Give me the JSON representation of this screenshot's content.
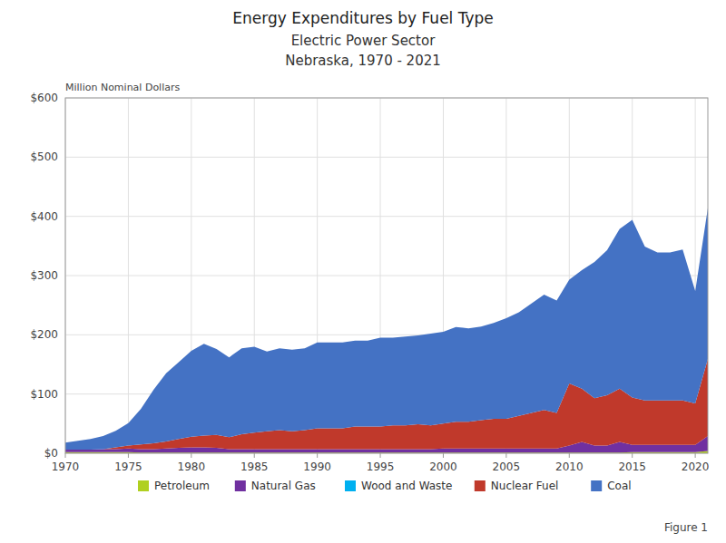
{
  "chart_data": {
    "type": "area",
    "stacked": true,
    "title": "Energy Expenditures by Fuel Type",
    "subtitle": [
      "Electric Power Sector",
      "Nebraska, 1970 - 2021"
    ],
    "ylabel": "Million Nominal Dollars",
    "annotations": [
      "Figure 1"
    ],
    "x": [
      1970,
      1971,
      1972,
      1973,
      1974,
      1975,
      1976,
      1977,
      1978,
      1979,
      1980,
      1981,
      1982,
      1983,
      1984,
      1985,
      1986,
      1987,
      1988,
      1989,
      1990,
      1991,
      1992,
      1993,
      1994,
      1995,
      1996,
      1997,
      1998,
      1999,
      2000,
      2001,
      2002,
      2003,
      2004,
      2005,
      2006,
      2007,
      2008,
      2009,
      2010,
      2011,
      2012,
      2013,
      2014,
      2015,
      2016,
      2017,
      2018,
      2019,
      2020,
      2021
    ],
    "series": [
      {
        "name": "Petroleum",
        "color": "#b0d020",
        "values": [
          2,
          2,
          2,
          2,
          2,
          2,
          1,
          1,
          1,
          1,
          1,
          1,
          1,
          1,
          1,
          1,
          1,
          1,
          1,
          1,
          1,
          1,
          1,
          1,
          1,
          1,
          1,
          1,
          1,
          1,
          1,
          1,
          1,
          1,
          1,
          1,
          1,
          1,
          1,
          1,
          1,
          1,
          1,
          1,
          1,
          2,
          2,
          2,
          2,
          2,
          2,
          4
        ]
      },
      {
        "name": "Natural Gas",
        "color": "#7030a0",
        "values": [
          4,
          4,
          4,
          5,
          5,
          6,
          6,
          6,
          7,
          8,
          9,
          9,
          8,
          6,
          6,
          6,
          6,
          6,
          6,
          6,
          6,
          6,
          6,
          6,
          6,
          6,
          6,
          6,
          6,
          6,
          7,
          7,
          7,
          7,
          7,
          7,
          7,
          7,
          7,
          7,
          12,
          18,
          12,
          12,
          18,
          12,
          12,
          12,
          12,
          12,
          12,
          25
        ]
      },
      {
        "name": "Wood and Waste",
        "color": "#00b0f0",
        "values": [
          0,
          0,
          0,
          0,
          0,
          0,
          0,
          0,
          0,
          0,
          0,
          0,
          0,
          0,
          0,
          0,
          0,
          0,
          0,
          0,
          0,
          0,
          0,
          0,
          0,
          0,
          0,
          0,
          0,
          0,
          0,
          0,
          0,
          0,
          0,
          0,
          0,
          0,
          0,
          0,
          0,
          0,
          0,
          0,
          0,
          0,
          0,
          0,
          0,
          0,
          0,
          0
        ]
      },
      {
        "name": "Nuclear Fuel",
        "color": "#c0392b",
        "values": [
          0,
          0,
          0,
          0,
          3,
          5,
          8,
          10,
          12,
          15,
          18,
          20,
          22,
          20,
          25,
          28,
          30,
          32,
          30,
          32,
          35,
          35,
          35,
          38,
          38,
          38,
          40,
          40,
          42,
          40,
          42,
          45,
          45,
          48,
          50,
          50,
          55,
          60,
          65,
          60,
          105,
          90,
          80,
          85,
          90,
          80,
          75,
          75,
          75,
          75,
          70,
          130
        ]
      },
      {
        "name": "Coal",
        "color": "#4472c4",
        "values": [
          12,
          15,
          18,
          22,
          28,
          38,
          60,
          90,
          115,
          130,
          145,
          155,
          145,
          135,
          145,
          145,
          135,
          138,
          138,
          138,
          145,
          145,
          145,
          145,
          145,
          150,
          148,
          150,
          150,
          155,
          155,
          160,
          158,
          158,
          162,
          170,
          175,
          185,
          195,
          190,
          175,
          200,
          230,
          245,
          270,
          300,
          260,
          250,
          250,
          255,
          190,
          255
        ]
      }
    ],
    "xlim": [
      1970,
      2021
    ],
    "xticks": [
      1970,
      1975,
      1980,
      1985,
      1990,
      1995,
      2000,
      2005,
      2010,
      2015,
      2020
    ],
    "ylim": [
      0,
      600
    ],
    "yticks": [
      {
        "value": 0,
        "label": "$0"
      },
      {
        "value": 100,
        "label": "$100"
      },
      {
        "value": 200,
        "label": "$200"
      },
      {
        "value": 300,
        "label": "$300"
      },
      {
        "value": 400,
        "label": "$400"
      },
      {
        "value": 500,
        "label": "$500"
      },
      {
        "value": 600,
        "label": "$600"
      }
    ],
    "grid": true,
    "legend": "bottom"
  }
}
